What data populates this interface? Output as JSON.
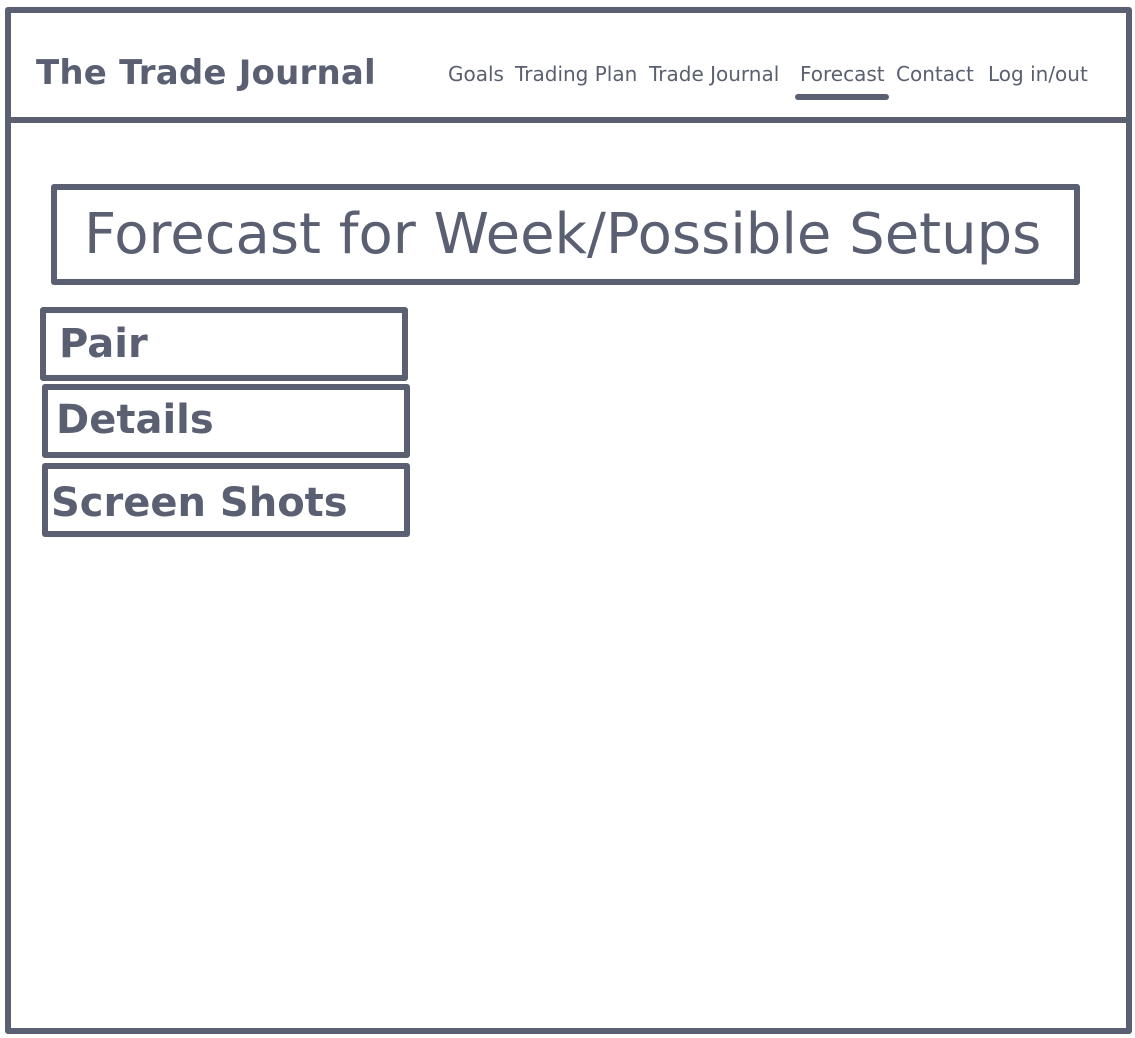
{
  "header": {
    "brand": "The Trade Journal",
    "nav": [
      {
        "label": "Goals",
        "active": false
      },
      {
        "label": "Trading Plan",
        "active": false
      },
      {
        "label": "Trade Journal",
        "active": false
      },
      {
        "label": "Forecast",
        "active": true
      },
      {
        "label": "Contact",
        "active": false
      },
      {
        "label": "Log in/out",
        "active": false
      }
    ]
  },
  "main": {
    "title": "Forecast for Week/Possible Setups",
    "fields": [
      {
        "label": "Pair"
      },
      {
        "label": "Details"
      },
      {
        "label": "Screen Shots"
      }
    ]
  },
  "colors": {
    "ink": "#5a6072",
    "background": "#ffffff"
  }
}
